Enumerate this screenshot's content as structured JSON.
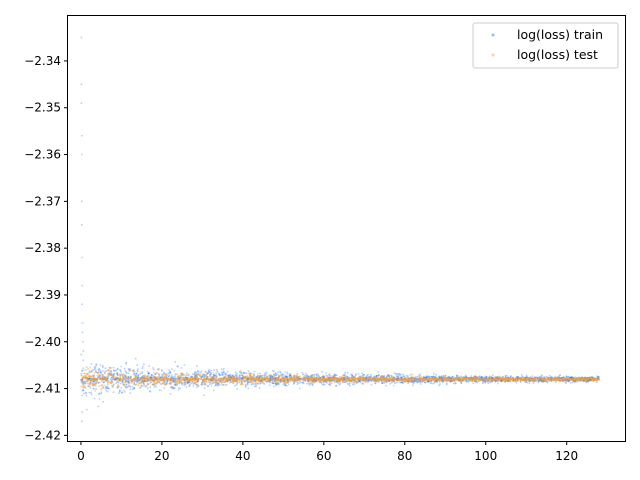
{
  "chart_data": {
    "type": "scatter",
    "title": "",
    "xlabel": "",
    "ylabel": "",
    "xlim": [
      -3.2,
      134.4
    ],
    "ylim": [
      -2.4212,
      -2.3304
    ],
    "xticks": [
      0,
      20,
      40,
      60,
      80,
      100,
      120
    ],
    "xtick_labels": [
      "0",
      "20",
      "40",
      "60",
      "80",
      "100",
      "120"
    ],
    "yticks": [
      -2.34,
      -2.35,
      -2.36,
      -2.37,
      -2.38,
      -2.39,
      -2.4,
      -2.41,
      -2.42
    ],
    "ytick_labels": [
      "−2.34",
      "−2.35",
      "−2.36",
      "−2.37",
      "−2.38",
      "−2.39",
      "−2.40",
      "−2.41",
      "−2.42"
    ],
    "grid": false,
    "legend_position": "top-right",
    "series": [
      {
        "name": "log(loss) train",
        "color": "#1f77ff",
        "marker": "point",
        "x_range": [
          0,
          128
        ],
        "center": -2.408,
        "spread_start": 0.0035,
        "spread_end": 0.0004,
        "initial_outliers": [
          [
            0.1,
            -2.335
          ],
          [
            0.1,
            -2.345
          ],
          [
            0.1,
            -2.349
          ],
          [
            0.2,
            -2.356
          ],
          [
            0.2,
            -2.36
          ],
          [
            0.2,
            -2.37
          ],
          [
            0.2,
            -2.375
          ],
          [
            0.3,
            -2.382
          ],
          [
            0.3,
            -2.388
          ],
          [
            0.3,
            -2.392
          ],
          [
            0.4,
            -2.396
          ],
          [
            0.4,
            -2.398
          ],
          [
            0.5,
            -2.4
          ],
          [
            0.6,
            -2.402
          ],
          [
            0.2,
            -2.417
          ],
          [
            0.3,
            -2.415
          ]
        ]
      },
      {
        "name": "log(loss) test",
        "color": "#ff9f2b",
        "marker": "point",
        "x_range": [
          0,
          128
        ],
        "center": -2.408,
        "spread_start": 0.0022,
        "spread_end": 0.0002
      }
    ]
  }
}
